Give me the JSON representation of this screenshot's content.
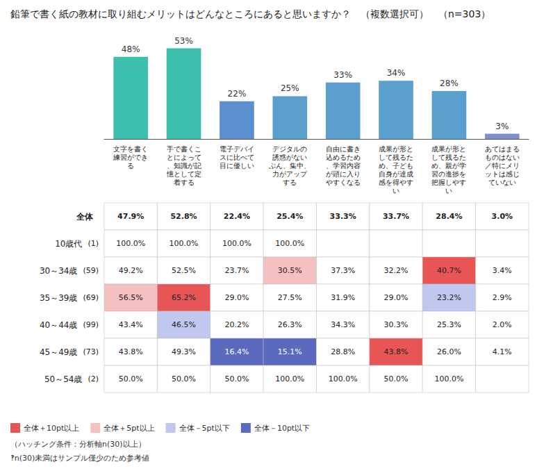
{
  "chart_data": {
    "type": "bar",
    "title": "鉛筆で書く紙の教材に取り組むメリットはどんなところにあると思いますか？　（複数選択可）　（n=303）",
    "categories": [
      "文字を書く\n練習ができ\nる",
      "手で書くこ\nとによって\n、知識が記\n憶として定\n着する",
      "電子デバイ\nスに比べて\n目に優しい",
      "デジタルの\n誘惑がない\nぶん、集中、\n力がアップ\nする",
      "自由に書き\n込めるため\n、学習内容\nが頭に入り\nやすくなる",
      "成果が形と\nして残るた\nめ、子ども\n自身が達成\n感を得やす\nい",
      "成果が形と\nして残るた\nめ、親が学\n習の進捗を\n把握しやす\nい",
      "あてはまる\nものはない\n／特にメリ\nットは感じ\nていない"
    ],
    "values": [
      48,
      53,
      22,
      25,
      33,
      34,
      28,
      3
    ],
    "value_labels": [
      "48%",
      "53%",
      "22%",
      "25%",
      "33%",
      "34%",
      "28%",
      "3%"
    ],
    "colors": [
      "#3dbfad",
      "#3dbfad",
      "#5b8fcf",
      "#5b9fcf",
      "#5b9fcf",
      "#5b9fcf",
      "#5b9fcf",
      "#8090cc"
    ],
    "ylim": [
      0,
      65
    ],
    "tick_labels": false,
    "grid": false,
    "data_labels": true,
    "table": {
      "rows": [
        "全体",
        "10歳代",
        "30～34歳",
        "35～39歳",
        "40～44歳",
        "45～49歳",
        "50～54歳"
      ],
      "counts": [
        null,
        "(1)",
        "(59)",
        "(69)",
        "(99)",
        "(73)",
        "(2)"
      ],
      "cells": [
        [
          "47.9%",
          "52.8%",
          "22.4%",
          "25.4%",
          "33.3%",
          "33.7%",
          "28.4%",
          "3.0%"
        ],
        [
          "100.0%",
          "100.0%",
          "100.0%",
          "100.0%",
          null,
          null,
          null,
          null
        ],
        [
          "49.2%",
          "52.5%",
          "23.7%",
          "30.5%",
          "37.3%",
          "32.2%",
          "40.7%",
          "3.4%"
        ],
        [
          "56.5%",
          "65.2%",
          "29.0%",
          "27.5%",
          "31.9%",
          "29.0%",
          "23.2%",
          "2.9%"
        ],
        [
          "43.4%",
          "46.5%",
          "20.2%",
          "26.3%",
          "34.3%",
          "30.3%",
          "25.3%",
          "2.0%"
        ],
        [
          "43.8%",
          "49.3%",
          "16.4%",
          "15.1%",
          "28.8%",
          "43.8%",
          "26.0%",
          "4.1%"
        ],
        [
          "50.0%",
          "50.0%",
          "50.0%",
          "100.0%",
          "100.0%",
          "50.0%",
          "100.0%",
          null
        ]
      ],
      "cell_colors": [
        [
          null,
          null,
          null,
          null,
          null,
          null,
          null,
          null
        ],
        [
          null,
          null,
          null,
          null,
          null,
          null,
          null,
          null
        ],
        [
          null,
          null,
          null,
          "#f5c0c0",
          null,
          null,
          "#e85555",
          null
        ],
        [
          "#f5c0c0",
          "#e85555",
          null,
          null,
          null,
          null,
          "#c0c8f0",
          null
        ],
        [
          null,
          "#c0c8f0",
          null,
          null,
          null,
          null,
          null,
          null
        ],
        [
          null,
          null,
          "#5b6abf",
          "#5b6abf",
          null,
          "#e85555",
          null,
          null
        ],
        [
          null,
          null,
          null,
          null,
          null,
          null,
          null,
          null
        ]
      ]
    },
    "table_legend": [
      {
        "label": "全体＋10pt以上",
        "color": "#e85555"
      },
      {
        "label": "全体＋5pt以上",
        "color": "#f5c0c0"
      },
      {
        "label": "全体－5pt以下",
        "color": "#c0c8f0"
      },
      {
        "label": "全体－10pt以下",
        "color": "#5b6abf"
      }
    ],
    "annotations": [
      "（ハッチング条件：分析軸n(30)以上）",
      "‽n(30)未満はサンプル僅少のため参考値"
    ]
  }
}
